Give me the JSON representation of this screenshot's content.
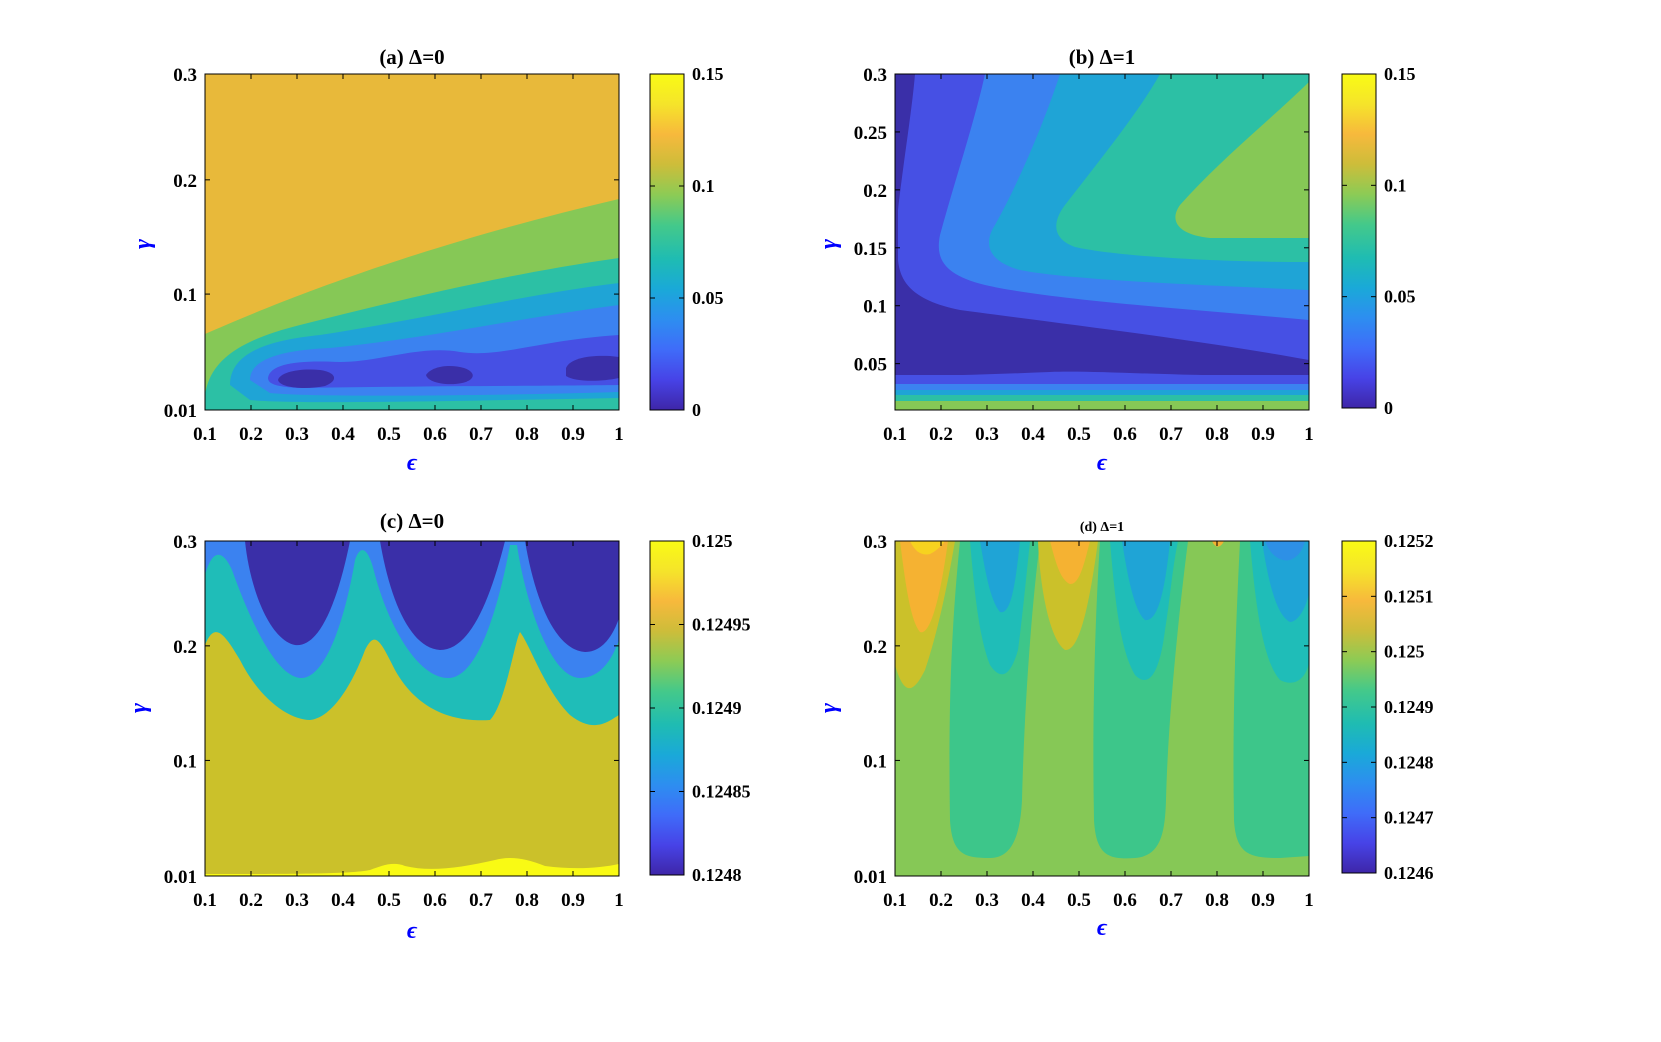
{
  "chart_data": [
    {
      "id": "a",
      "type": "contourf",
      "title": "(a) Δ=0",
      "xlabel": "ϵ",
      "ylabel": "γ",
      "xlim": [
        0.1,
        1
      ],
      "ylim": [
        0.01,
        0.3
      ],
      "xticks": [
        "0.1",
        "0.2",
        "0.3",
        "0.4",
        "0.5",
        "0.6",
        "0.7",
        "0.8",
        "0.9",
        "1"
      ],
      "yticks": [
        "0.01",
        "0.1",
        "0.2",
        "0.3"
      ],
      "colorbar": {
        "min": 0,
        "max": 0.15,
        "ticks": [
          "0",
          "0.05",
          "0.1",
          "0.15"
        ]
      },
      "regions": [
        {
          "level": 0.125,
          "color": "#e8b93a",
          "desc": "upper region"
        },
        {
          "level": 0.1,
          "color": "#86c856"
        },
        {
          "level": 0.075,
          "color": "#2cc0a5"
        },
        {
          "level": 0.05,
          "color": "#1fa4d6"
        },
        {
          "level": 0.025,
          "color": "#3b82f0"
        },
        {
          "level": 0.0125,
          "color": "#4650e4"
        },
        {
          "level": 0.0,
          "color": "#3a2fa8"
        }
      ]
    },
    {
      "id": "b",
      "type": "contourf",
      "title": "(b) Δ=1",
      "xlabel": "ϵ",
      "ylabel": "γ",
      "xlim": [
        0.1,
        1
      ],
      "ylim": [
        0.01,
        0.3
      ],
      "xticks": [
        "0.1",
        "0.2",
        "0.3",
        "0.4",
        "0.5",
        "0.6",
        "0.7",
        "0.8",
        "0.9",
        "1"
      ],
      "yticks": [
        "0.05",
        "0.1",
        "0.15",
        "0.2",
        "0.25",
        "0.3"
      ],
      "colorbar": {
        "min": 0,
        "max": 0.15,
        "ticks": [
          "0",
          "0.05",
          "0.1",
          "0.15"
        ]
      },
      "regions": [
        {
          "level": 0.1,
          "color": "#86c856"
        },
        {
          "level": 0.075,
          "color": "#2cc0a5"
        },
        {
          "level": 0.05,
          "color": "#1fa4d6"
        },
        {
          "level": 0.025,
          "color": "#3b82f0"
        },
        {
          "level": 0.0125,
          "color": "#4650e4"
        },
        {
          "level": 0.0,
          "color": "#3a2fa8"
        }
      ]
    },
    {
      "id": "c",
      "type": "contourf",
      "title": "(c) Δ=0",
      "xlabel": "ϵ",
      "ylabel": "γ",
      "xlim": [
        0.1,
        1
      ],
      "ylim": [
        0.01,
        0.3
      ],
      "xticks": [
        "0.1",
        "0.2",
        "0.3",
        "0.4",
        "0.5",
        "0.6",
        "0.7",
        "0.8",
        "0.9",
        "1"
      ],
      "yticks": [
        "0.01",
        "0.1",
        "0.2",
        "0.3"
      ],
      "colorbar": {
        "min": 0.1248,
        "max": 0.125,
        "ticks": [
          "0.1248",
          "0.12485",
          "0.1249",
          "0.12495",
          "0.125"
        ]
      },
      "regions": [
        {
          "level": 0.125,
          "color": "#f9fa14"
        },
        {
          "level": 0.12495,
          "color": "#cbc12a"
        },
        {
          "level": 0.1249,
          "color": "#1fbdb8"
        },
        {
          "level": 0.12485,
          "color": "#3b82f0"
        },
        {
          "level": 0.1248,
          "color": "#3a2fa8"
        }
      ]
    },
    {
      "id": "d",
      "type": "contourf",
      "title": "(d) Δ=1",
      "xlabel": "ϵ",
      "ylabel": "γ",
      "xlim": [
        0.1,
        1
      ],
      "ylim": [
        0.01,
        0.3
      ],
      "xticks": [
        "0.1",
        "0.2",
        "0.3",
        "0.4",
        "0.5",
        "0.6",
        "0.7",
        "0.8",
        "0.9",
        "1"
      ],
      "yticks": [
        "0.01",
        "0.1",
        "0.2",
        "0.3"
      ],
      "colorbar": {
        "min": 0.1246,
        "max": 0.1252,
        "ticks": [
          "0.1246",
          "0.1247",
          "0.1248",
          "0.1249",
          "0.125",
          "0.1251",
          "0.1252"
        ]
      },
      "regions": [
        {
          "level": 0.12515,
          "color": "#f7d21f"
        },
        {
          "level": 0.1251,
          "color": "#f5b232"
        },
        {
          "level": 0.12505,
          "color": "#cbc12a"
        },
        {
          "level": 0.125,
          "color": "#86c856"
        },
        {
          "level": 0.12495,
          "color": "#3dc68a"
        },
        {
          "level": 0.1249,
          "color": "#1fbdb8"
        },
        {
          "level": 0.12485,
          "color": "#1fa4d6"
        },
        {
          "level": 0.1248,
          "color": "#2d90e6"
        }
      ]
    }
  ],
  "colorbar_stops": [
    "#3e26a8",
    "#4743e7",
    "#3f6cf9",
    "#2d8ef0",
    "#1aa9d8",
    "#1fbcb2",
    "#44c98a",
    "#8ccb55",
    "#cdbd3a",
    "#f7b93c",
    "#f5e42a",
    "#f9fb15"
  ]
}
